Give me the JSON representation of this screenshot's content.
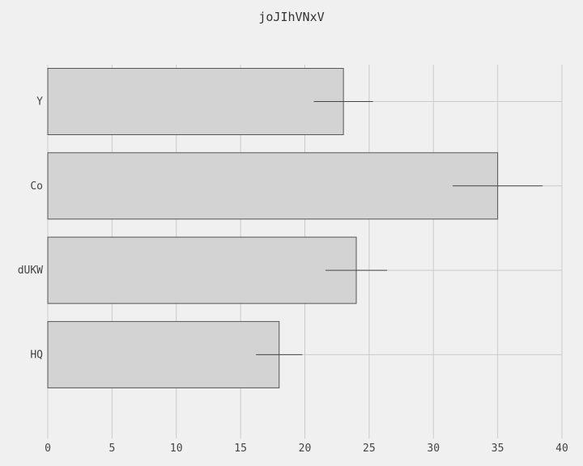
{
  "chart_data": {
    "type": "bar",
    "orientation": "horizontal",
    "title": "joJIhVNxV",
    "xlabel": "",
    "ylabel": "",
    "categories": [
      "Y",
      "Co",
      "dUKW",
      "HQ"
    ],
    "values": [
      23,
      35,
      24,
      18
    ],
    "error": [
      2.3,
      3.5,
      2.4,
      1.8
    ],
    "xlim": [
      0,
      40
    ],
    "xticks": [
      0,
      5,
      10,
      15,
      20,
      25,
      30,
      35,
      40
    ],
    "grid": true,
    "bar_color": "#d3d3d3",
    "bar_edge_color": "#555555",
    "grid_color": "#cbcbcb",
    "background": "#f0f0f0"
  }
}
